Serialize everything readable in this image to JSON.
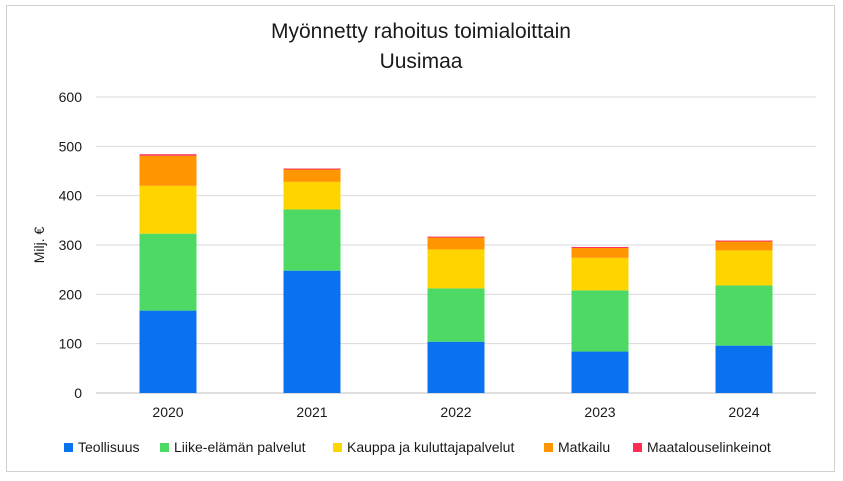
{
  "chart_data": {
    "type": "bar",
    "stacked": true,
    "title": "Myönnetty rahoitus toimialoittain",
    "subtitle": "Uusimaa",
    "xlabel": "",
    "ylabel": "Milj. €",
    "ylim": [
      0,
      600
    ],
    "yticks": [
      0,
      100,
      200,
      300,
      400,
      500,
      600
    ],
    "grid": true,
    "legend_position": "bottom",
    "categories": [
      "2020",
      "2021",
      "2022",
      "2023",
      "2024"
    ],
    "series": [
      {
        "name": "Teollisuus",
        "color": "#0a72f0",
        "values": [
          167,
          248,
          104,
          84,
          96
        ]
      },
      {
        "name": "Liike-elämän palvelut",
        "color": "#4cd964",
        "values": [
          156,
          124,
          108,
          124,
          122
        ]
      },
      {
        "name": "Kauppa ja kuluttajapalvelut",
        "color": "#ffd500",
        "values": [
          97,
          56,
          79,
          66,
          71
        ]
      },
      {
        "name": "Matkailu",
        "color": "#ff9500",
        "values": [
          61,
          25,
          24,
          20,
          18
        ]
      },
      {
        "name": "Maatalouselinkeinot",
        "color": "#ff2d55",
        "values": [
          3,
          2,
          2,
          2,
          2
        ]
      }
    ]
  }
}
